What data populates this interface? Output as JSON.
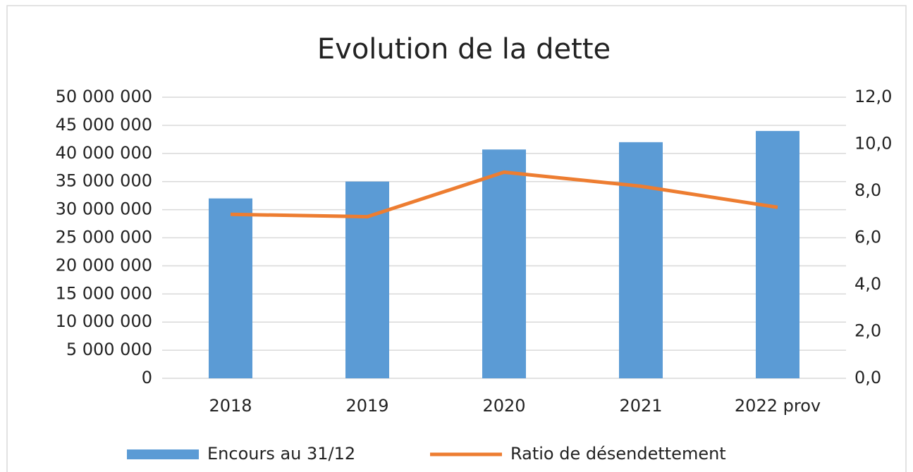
{
  "chart_data": {
    "type": "bar_line",
    "title": "Evolution de la dette",
    "categories": [
      "2018",
      "2019",
      "2020",
      "2021",
      "2022 prov"
    ],
    "series": [
      {
        "name": "Encours au 31/12",
        "type": "bar",
        "color": "#5b9bd5",
        "axis": "y",
        "values": [
          32000000,
          35000000,
          40700000,
          42000000,
          44000000
        ]
      },
      {
        "name": "Ratio de désendettement",
        "type": "line",
        "color": "#ed7d31",
        "axis": "y2",
        "values": [
          7.0,
          6.9,
          8.8,
          8.2,
          7.3
        ]
      }
    ],
    "ylim": [
      0,
      50000000
    ],
    "yticks": [
      0,
      {
        "value": 5000000,
        "label": "5 000 000"
      },
      {
        "value": 10000000,
        "label": "10 000 000"
      },
      {
        "value": 15000000,
        "label": "15 000 000"
      },
      {
        "value": 20000000,
        "label": "20 000 000"
      },
      {
        "value": 25000000,
        "label": "25 000 000"
      },
      {
        "value": 30000000,
        "label": "30 000 000"
      },
      {
        "value": 35000000,
        "label": "35 000 000"
      },
      {
        "value": 40000000,
        "label": "40 000 000"
      },
      {
        "value": 45000000,
        "label": "45 000 000"
      },
      {
        "value": 50000000,
        "label": "50 000 000"
      }
    ],
    "y2lim": [
      0,
      12
    ],
    "y2ticks": [
      {
        "value": 0,
        "label": "0,0"
      },
      {
        "value": 2,
        "label": "2,0"
      },
      {
        "value": 4,
        "label": "4,0"
      },
      {
        "value": 6,
        "label": "6,0"
      },
      {
        "value": 8,
        "label": "8,0"
      },
      {
        "value": 10,
        "label": "10,0"
      },
      {
        "value": 12,
        "label": "12,0"
      }
    ],
    "grid": true,
    "legend": "bottom"
  }
}
